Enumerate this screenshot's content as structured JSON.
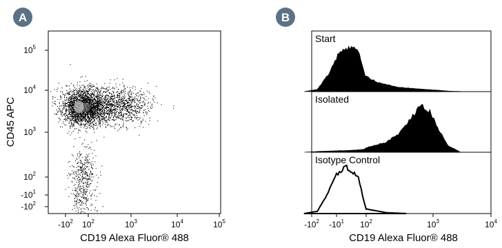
{
  "chart_data": [
    {
      "type": "scatter",
      "panel_label": "A",
      "xlabel": "CD19 Alexa Fluor® 488",
      "ylabel": "CD45 APC",
      "x_scale": "biexponential",
      "y_scale": "biexponential",
      "x_ticks": [
        {
          "base": "-10",
          "exp": "2",
          "value": -100
        },
        {
          "base": "10",
          "exp": "2",
          "value": 100
        },
        {
          "base": "10",
          "exp": "3",
          "value": 1000
        },
        {
          "base": "10",
          "exp": "4",
          "value": 10000
        },
        {
          "base": "10",
          "exp": "5",
          "value": 100000
        }
      ],
      "y_ticks": [
        {
          "base": "10",
          "exp": "5",
          "value": 100000
        },
        {
          "base": "10",
          "exp": "4",
          "value": 10000
        },
        {
          "base": "10",
          "exp": "3",
          "value": 1000
        },
        {
          "base": "10",
          "exp": "2",
          "value": 100
        },
        {
          "base": "-10",
          "exp": "1",
          "value": -10
        },
        {
          "base": "-10",
          "exp": "2",
          "value": -100
        }
      ],
      "populations": [
        {
          "name": "",
          "center": [
            20,
            4000
          ],
          "spread": [
            0.28,
            0.22
          ],
          "points": 2600
        },
        {
          "name": "",
          "center": [
            600,
            4500
          ],
          "spread": [
            0.35,
            0.22
          ],
          "points": 900
        },
        {
          "name": "",
          "center": [
            10,
            30
          ],
          "spread": [
            0.25,
            0.6
          ],
          "points": 500
        }
      ]
    },
    {
      "type": "area",
      "panel_label": "B",
      "xlabel": "CD19 Alexa Fluor® 488",
      "x_scale": "biexponential",
      "x_ticks": [
        {
          "base": "-10",
          "exp": "2",
          "value": -100
        },
        {
          "base": "-10",
          "exp": "1",
          "value": -10
        },
        {
          "base": "10",
          "exp": "2",
          "value": 100
        },
        {
          "base": "10",
          "exp": "3",
          "value": 1000
        },
        {
          "base": "10",
          "exp": "4",
          "value": 10000
        }
      ],
      "series": [
        {
          "name": "Start",
          "style": "filled",
          "x": [
            -200,
            -60,
            -20,
            -5,
            5,
            20,
            40,
            80,
            150,
            300,
            600,
            1000,
            2000,
            4000
          ],
          "y": [
            0,
            5,
            40,
            85,
            100,
            80,
            55,
            35,
            20,
            10,
            6,
            4,
            1,
            0
          ]
        },
        {
          "name": "Isolated",
          "style": "filled",
          "x": [
            -200,
            -50,
            0,
            50,
            100,
            200,
            300,
            400,
            500,
            600,
            700,
            900,
            1200,
            1800,
            3000
          ],
          "y": [
            0,
            2,
            4,
            6,
            10,
            22,
            40,
            60,
            80,
            95,
            100,
            90,
            55,
            15,
            0
          ]
        },
        {
          "name": "Isotype Control",
          "style": "outline",
          "x": [
            -200,
            -60,
            -25,
            -10,
            0,
            15,
            30,
            60,
            100,
            200,
            400
          ],
          "y": [
            0,
            5,
            40,
            85,
            100,
            80,
            55,
            25,
            10,
            2,
            0
          ]
        }
      ]
    }
  ]
}
